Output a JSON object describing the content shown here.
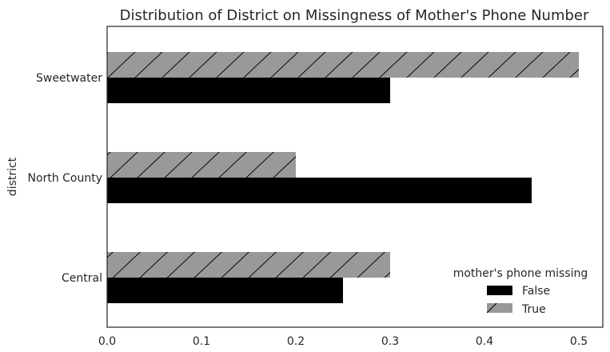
{
  "chart_data": {
    "type": "bar",
    "orientation": "horizontal",
    "title": "Distribution of District on Missingness of Mother's Phone Number",
    "ylabel": "district",
    "xlabel": "",
    "categories": [
      "Central",
      "North County",
      "Sweetwater"
    ],
    "series": [
      {
        "name": "False",
        "values": [
          0.25,
          0.45,
          0.3
        ],
        "color": "#000000",
        "hatch": false
      },
      {
        "name": "True",
        "values": [
          0.3,
          0.2,
          0.5
        ],
        "color": "#999999",
        "hatch": true
      }
    ],
    "xlim": [
      0.0,
      0.5254
    ],
    "xticks": [
      "0.0",
      "0.1",
      "0.2",
      "0.3",
      "0.4",
      "0.5"
    ],
    "xtick_values": [
      0.0,
      0.1,
      0.2,
      0.3,
      0.4,
      0.5
    ],
    "grid": false,
    "legend": {
      "title": "mother's phone missing",
      "placement": "lower-right",
      "entries": [
        "False",
        "True"
      ]
    }
  }
}
